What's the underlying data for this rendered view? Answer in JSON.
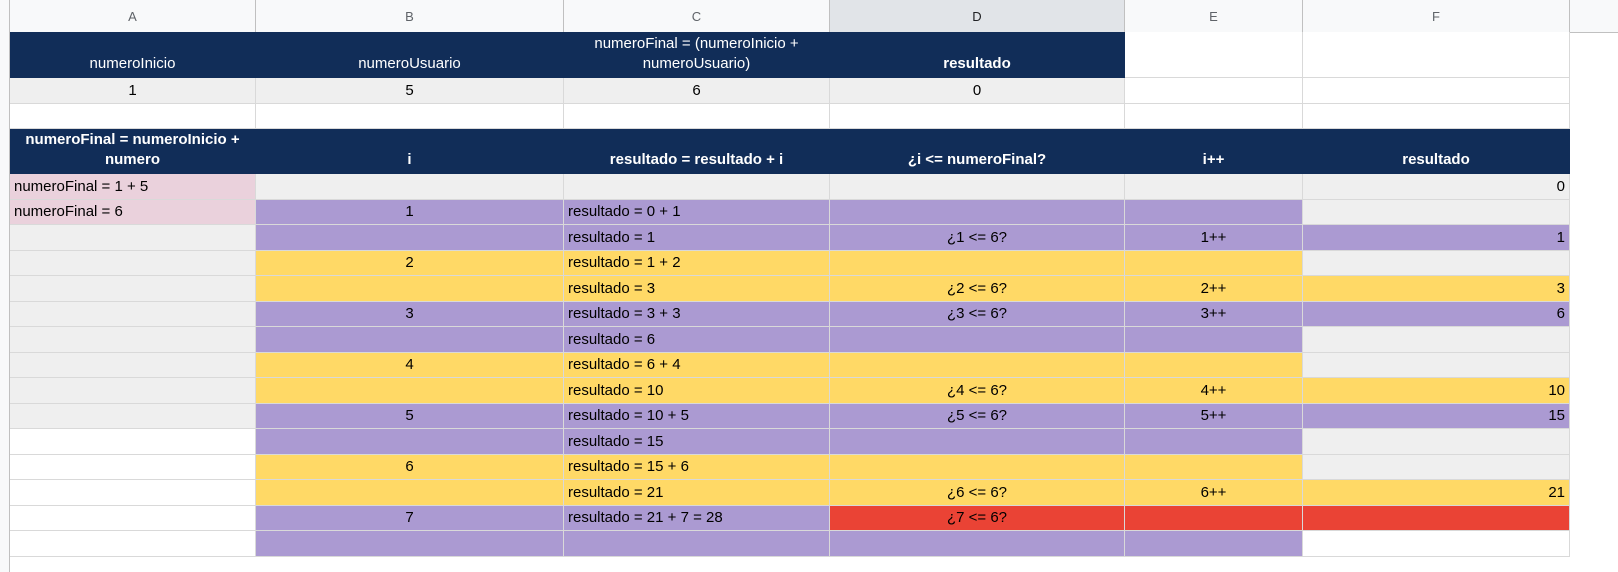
{
  "columns": [
    "A",
    "B",
    "C",
    "D",
    "E",
    "F"
  ],
  "selected_column": "D",
  "top_table": {
    "headers": [
      "numeroInicio",
      "numeroUsuario",
      "numeroFinal = (numeroInicio + numeroUsuario)",
      "resultado"
    ],
    "values": [
      "1",
      "5",
      "6",
      "0"
    ]
  },
  "loop_table": {
    "headers": [
      "numeroFinal = numeroInicio + numero",
      "i",
      "resultado = resultado + i",
      "¿i <= numeroFinal?",
      "i++",
      "resultado"
    ],
    "rows": [
      {
        "a": "numeroFinal = 1 + 5",
        "b": "",
        "c": "",
        "d": "",
        "e": "",
        "f": "0"
      },
      {
        "a": "numeroFinal = 6",
        "b": "1",
        "c": "resultado = 0 + 1",
        "d": "",
        "e": "",
        "f": ""
      },
      {
        "a": "",
        "b": "",
        "c": "resultado = 1",
        "d": "¿1 <= 6?",
        "e": "1++",
        "f": "1"
      },
      {
        "a": "",
        "b": "2",
        "c": "resultado = 1 + 2",
        "d": "",
        "e": "",
        "f": ""
      },
      {
        "a": "",
        "b": "",
        "c": "resultado = 3",
        "d": "¿2 <= 6?",
        "e": "2++",
        "f": "3"
      },
      {
        "a": "",
        "b": "3",
        "c": "resultado = 3 + 3",
        "d": "¿3 <= 6?",
        "e": "3++",
        "f": "6"
      },
      {
        "a": "",
        "b": "",
        "c": "resultado = 6",
        "d": "",
        "e": "",
        "f": ""
      },
      {
        "a": "",
        "b": "4",
        "c": "resultado = 6 + 4",
        "d": "",
        "e": "",
        "f": ""
      },
      {
        "a": "",
        "b": "",
        "c": "resultado = 10",
        "d": "¿4 <= 6?",
        "e": "4++",
        "f": "10"
      },
      {
        "a": "",
        "b": "5",
        "c": "resultado = 10 + 5",
        "d": "¿5 <= 6?",
        "e": "5++",
        "f": "15"
      },
      {
        "a": "",
        "b": "",
        "c": "resultado = 15",
        "d": "",
        "e": "",
        "f": ""
      },
      {
        "a": "",
        "b": "6",
        "c": "resultado = 15 + 6",
        "d": "",
        "e": "",
        "f": ""
      },
      {
        "a": "",
        "b": "",
        "c": "resultado = 21",
        "d": "¿6 <= 6?",
        "e": "6++",
        "f": "21"
      },
      {
        "a": "",
        "b": "7",
        "c": "resultado = 21 + 7 = 28",
        "d": "¿7 <= 6?",
        "e": "",
        "f": ""
      },
      {
        "a": "",
        "b": "",
        "c": "",
        "d": "",
        "e": "",
        "f": ""
      }
    ]
  },
  "colors": {
    "header_navy": "#112d58",
    "gray": "#efefef",
    "pink": "#ead1dc",
    "purple": "#ab9ad2",
    "yellow": "#ffd966",
    "red": "#ea4335"
  }
}
